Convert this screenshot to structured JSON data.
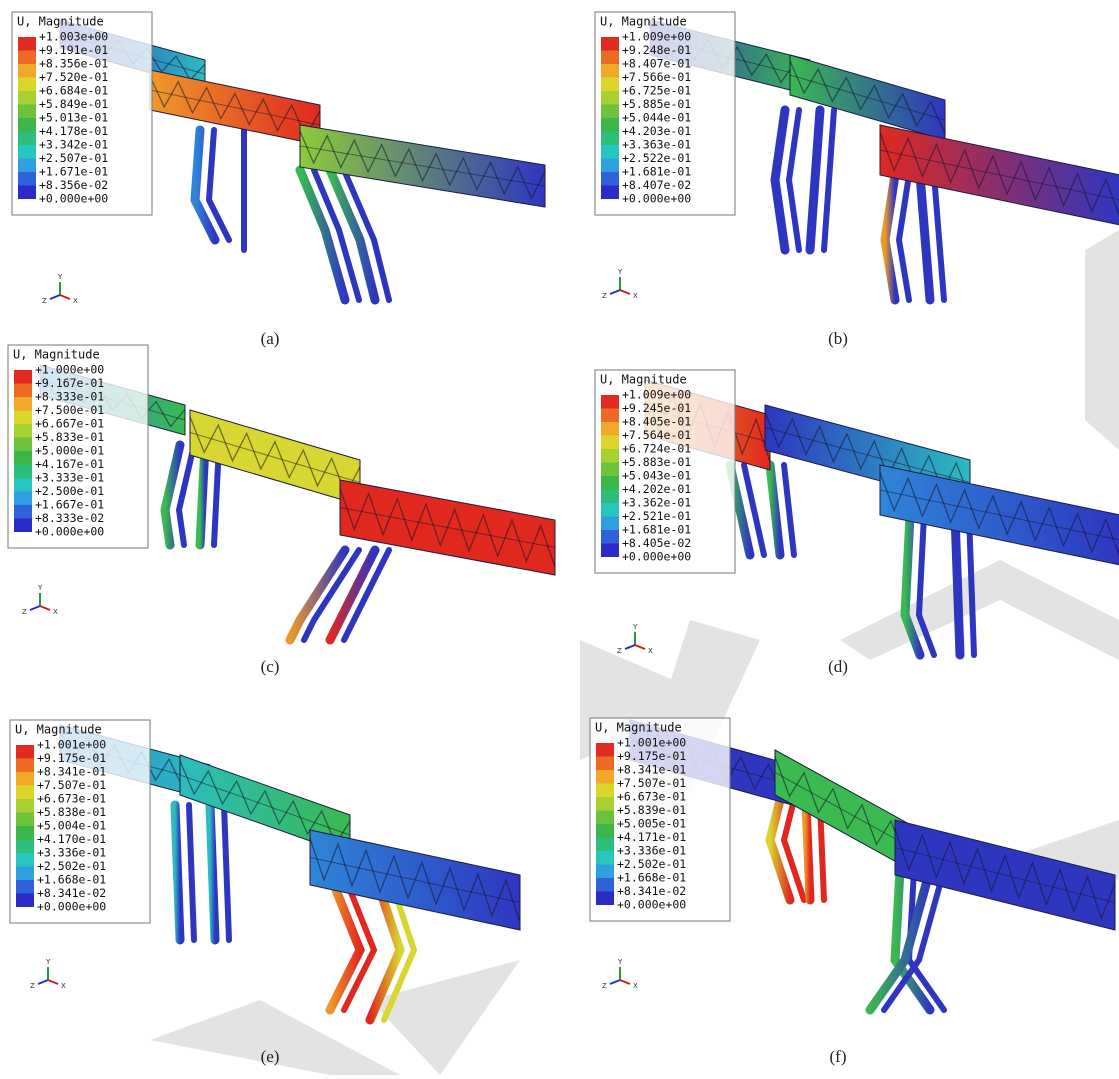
{
  "panels": [
    {
      "label": "(a)",
      "legend": {
        "title": "U, Magnitude",
        "values": [
          "+1.003e+00",
          "+9.191e-01",
          "+8.356e-01",
          "+7.520e-01",
          "+6.684e-01",
          "+5.849e-01",
          "+5.013e-01",
          "+4.178e-01",
          "+3.342e-01",
          "+2.507e-01",
          "+1.671e-01",
          "+8.356e-02",
          "+0.000e+00"
        ]
      }
    },
    {
      "label": "(b)",
      "legend": {
        "title": "U, Magnitude",
        "values": [
          "+1.009e+00",
          "+9.248e-01",
          "+8.407e-01",
          "+7.566e-01",
          "+6.725e-01",
          "+5.885e-01",
          "+5.044e-01",
          "+4.203e-01",
          "+3.363e-01",
          "+2.522e-01",
          "+1.681e-01",
          "+8.407e-02",
          "+0.000e+00"
        ]
      }
    },
    {
      "label": "(c)",
      "legend": {
        "title": "U, Magnitude",
        "values": [
          "+1.000e+00",
          "+9.167e-01",
          "+8.333e-01",
          "+7.500e-01",
          "+6.667e-01",
          "+5.833e-01",
          "+5.000e-01",
          "+4.167e-01",
          "+3.333e-01",
          "+2.500e-01",
          "+1.667e-01",
          "+8.333e-02",
          "+0.000e+00"
        ]
      }
    },
    {
      "label": "(d)",
      "legend": {
        "title": "U, Magnitude",
        "values": [
          "+1.009e+00",
          "+9.245e-01",
          "+8.405e-01",
          "+7.564e-01",
          "+6.724e-01",
          "+5.883e-01",
          "+5.043e-01",
          "+4.202e-01",
          "+3.362e-01",
          "+2.521e-01",
          "+1.681e-01",
          "+8.405e-02",
          "+0.000e+00"
        ]
      }
    },
    {
      "label": "(e)",
      "legend": {
        "title": "U, Magnitude",
        "values": [
          "+1.001e+00",
          "+9.175e-01",
          "+8.341e-01",
          "+7.507e-01",
          "+6.673e-01",
          "+5.838e-01",
          "+5.004e-01",
          "+4.170e-01",
          "+3.336e-01",
          "+2.502e-01",
          "+1.668e-01",
          "+8.341e-02",
          "+0.000e+00"
        ]
      }
    },
    {
      "label": "(f)",
      "legend": {
        "title": "U, Magnitude",
        "values": [
          "+1.001e+00",
          "+9.175e-01",
          "+8.341e-01",
          "+7.507e-01",
          "+6.673e-01",
          "+5.839e-01",
          "+5.005e-01",
          "+4.171e-01",
          "+3.336e-01",
          "+2.502e-01",
          "+1.668e-01",
          "+8.341e-02",
          "+0.000e+00"
        ]
      }
    }
  ],
  "triad": {
    "x": "X",
    "y": "Y",
    "z": "Z"
  }
}
